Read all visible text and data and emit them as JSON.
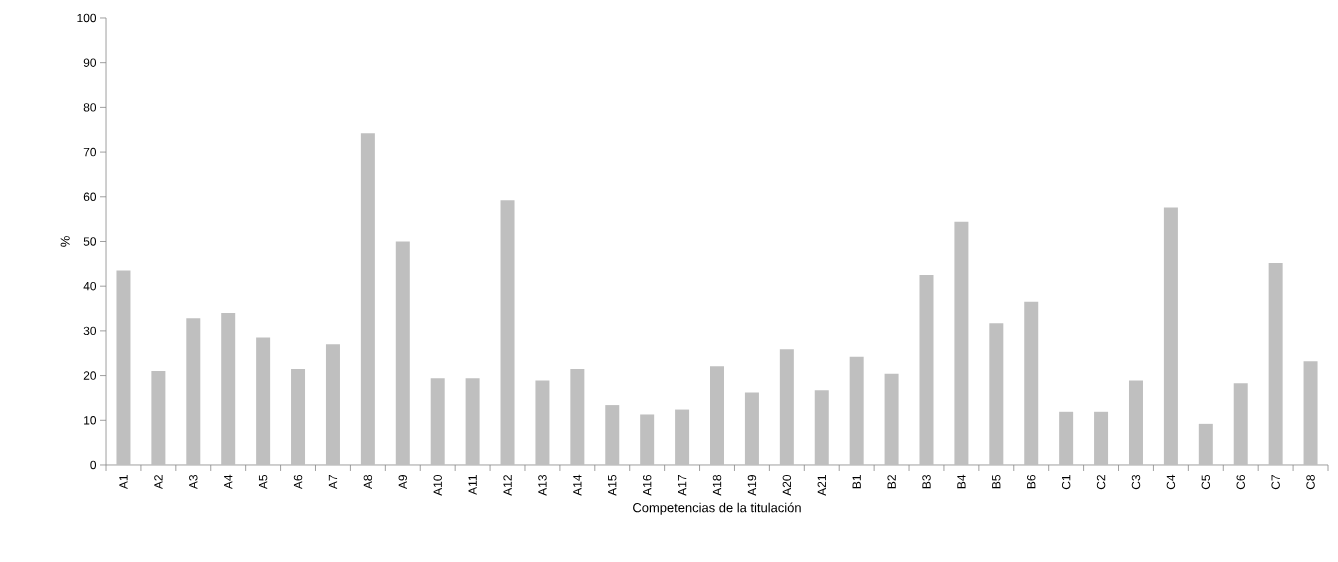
{
  "chart_data": {
    "type": "bar",
    "xlabel": "Competencias de la titulación",
    "ylabel": "%",
    "categories": [
      "A1",
      "A2",
      "A3",
      "A4",
      "A5",
      "A6",
      "A7",
      "A8",
      "A9",
      "A10",
      "A11",
      "A12",
      "A13",
      "A14",
      "A15",
      "A16",
      "A17",
      "A18",
      "A19",
      "A20",
      "A21",
      "B1",
      "B2",
      "B3",
      "B4",
      "B5",
      "B6",
      "C1",
      "C2",
      "C3",
      "C4",
      "C5",
      "C6",
      "C7",
      "C8"
    ],
    "values": [
      43.5,
      21,
      32.8,
      34,
      28.5,
      21.5,
      27,
      74.2,
      50,
      19.4,
      19.4,
      59.2,
      18.9,
      21.5,
      13.4,
      11.3,
      12.4,
      22.1,
      16.2,
      25.9,
      16.7,
      24.2,
      20.4,
      42.5,
      54.4,
      31.7,
      36.5,
      11.9,
      11.9,
      18.9,
      57.6,
      9.2,
      18.3,
      45.2,
      23.2
    ],
    "color": "#bfbfbf",
    "ylim": [
      0,
      100
    ],
    "yticks": [
      0,
      10,
      20,
      30,
      40,
      50,
      60,
      70,
      80,
      90,
      100
    ],
    "grid": false
  }
}
